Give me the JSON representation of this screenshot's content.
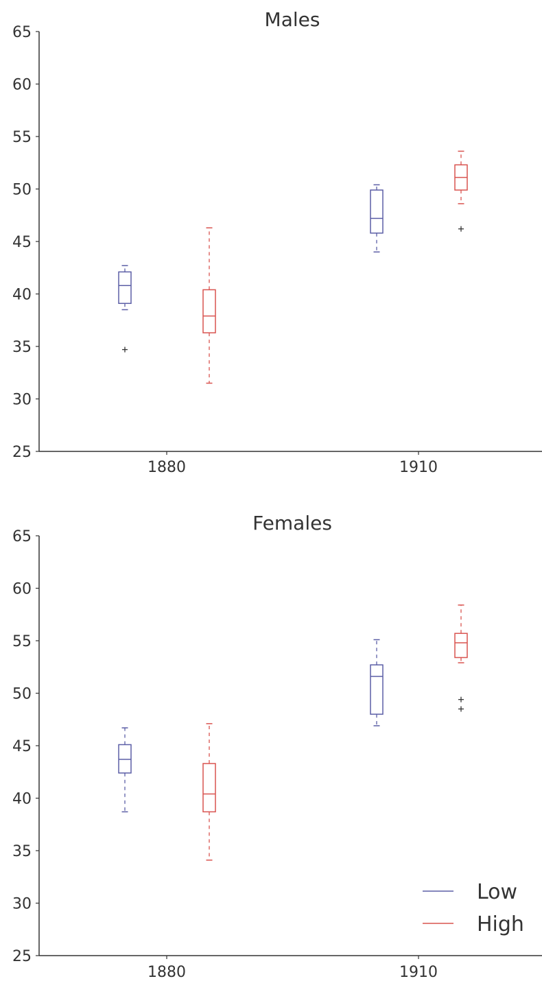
{
  "colors": {
    "low": "#5b5ea6",
    "high": "#d9534f",
    "axis": "#333333"
  },
  "chart_data": [
    {
      "type": "box",
      "title": "Males",
      "xlabel": "",
      "ylabel": "",
      "categories": [
        "1880",
        "1910"
      ],
      "ylim": [
        25,
        65
      ],
      "yticks": [
        "25",
        "30",
        "35",
        "40",
        "45",
        "50",
        "55",
        "60",
        "65"
      ],
      "grid": false,
      "legend": "none",
      "series": [
        {
          "name": "Low",
          "color": "#5b5ea6",
          "boxes": [
            {
              "category": "1880",
              "min": 38.5,
              "q1": 39.1,
              "median": 40.8,
              "q3": 42.1,
              "max": 42.7,
              "outliers": [
                34.7
              ]
            },
            {
              "category": "1910",
              "min": 44.0,
              "q1": 45.8,
              "median": 47.2,
              "q3": 49.9,
              "max": 50.4,
              "outliers": []
            }
          ]
        },
        {
          "name": "High",
          "color": "#d9534f",
          "boxes": [
            {
              "category": "1880",
              "min": 31.5,
              "q1": 36.3,
              "median": 37.9,
              "q3": 40.4,
              "max": 46.3,
              "outliers": []
            },
            {
              "category": "1910",
              "min": 48.6,
              "q1": 49.9,
              "median": 51.1,
              "q3": 52.3,
              "max": 53.6,
              "outliers": [
                46.2
              ]
            }
          ]
        }
      ]
    },
    {
      "type": "box",
      "title": "Females",
      "xlabel": "",
      "ylabel": "",
      "categories": [
        "1880",
        "1910"
      ],
      "ylim": [
        25,
        65
      ],
      "yticks": [
        "25",
        "30",
        "35",
        "40",
        "45",
        "50",
        "55",
        "60",
        "65"
      ],
      "grid": false,
      "legend": "bottom-right",
      "series": [
        {
          "name": "Low",
          "color": "#5b5ea6",
          "boxes": [
            {
              "category": "1880",
              "min": 38.7,
              "q1": 42.4,
              "median": 43.7,
              "q3": 45.1,
              "max": 46.7,
              "outliers": []
            },
            {
              "category": "1910",
              "min": 46.9,
              "q1": 48.0,
              "median": 51.6,
              "q3": 52.7,
              "max": 55.1,
              "outliers": []
            }
          ]
        },
        {
          "name": "High",
          "color": "#d9534f",
          "boxes": [
            {
              "category": "1880",
              "min": 34.1,
              "q1": 38.7,
              "median": 40.4,
              "q3": 43.3,
              "max": 47.1,
              "outliers": []
            },
            {
              "category": "1910",
              "min": 52.9,
              "q1": 53.4,
              "median": 54.8,
              "q3": 55.7,
              "max": 58.4,
              "outliers": [
                49.4,
                48.5
              ]
            }
          ]
        }
      ]
    }
  ]
}
